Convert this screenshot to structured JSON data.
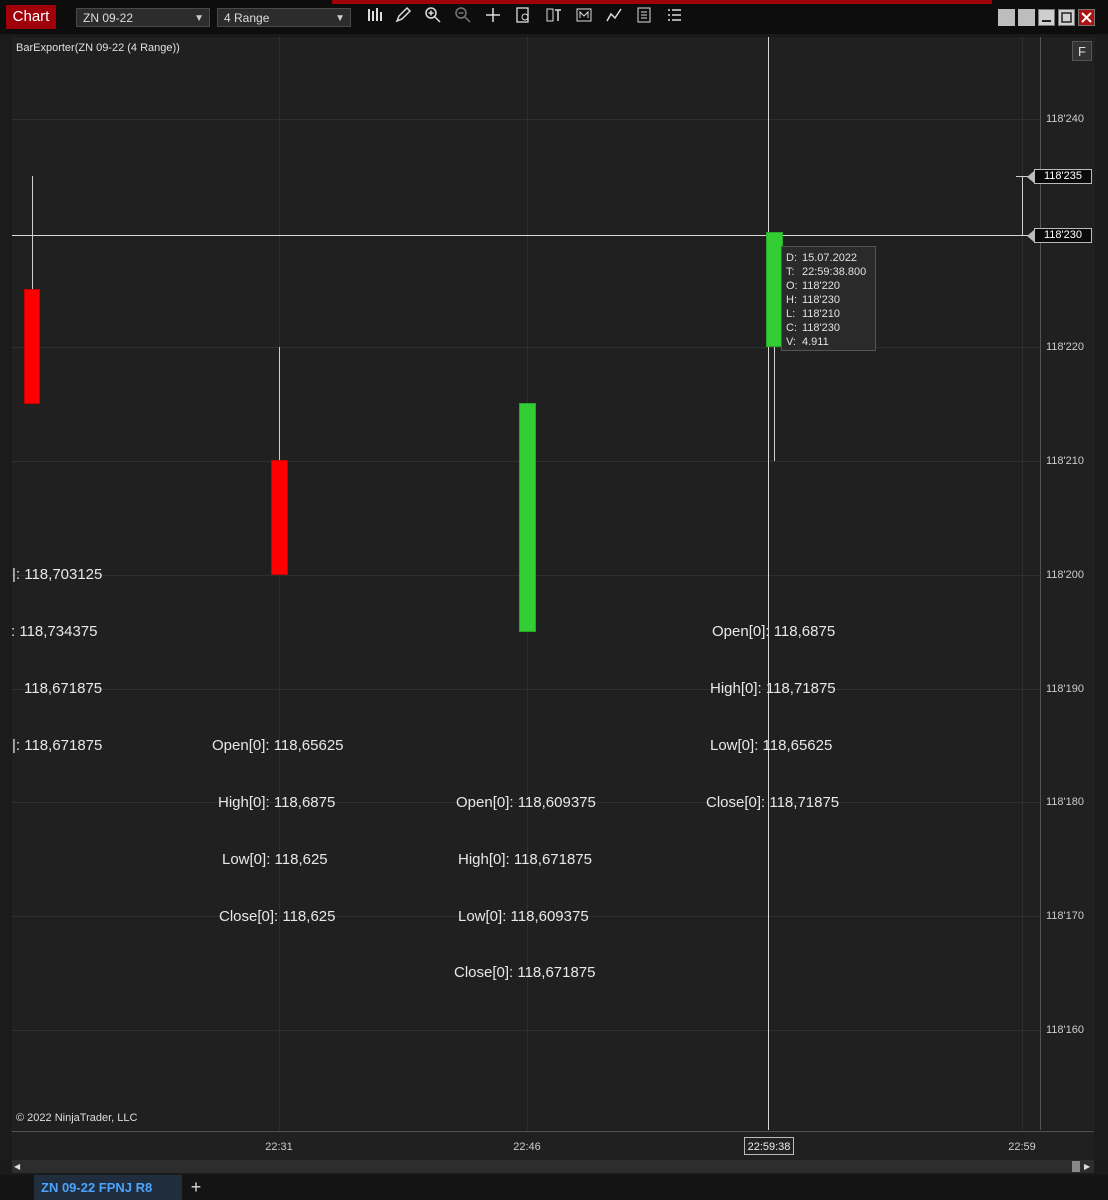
{
  "toolbar": {
    "chart_tab": "Chart",
    "instrument": "ZN 09-22",
    "period": "4 Range",
    "icons": [
      "bar-type-icon",
      "pencil-icon",
      "zoom-in-icon",
      "zoom-out-icon",
      "crosshair-icon",
      "data-box-icon",
      "indicators-icon",
      "strategies-icon",
      "draw-tools-icon",
      "properties-icon",
      "list-icon"
    ]
  },
  "chart": {
    "indicator_label": "BarExporter(ZN 09-22 (4 Range))",
    "copyright": "© 2022 NinjaTrader, LLC",
    "f_button": "F",
    "price_ticks": [
      "118'240",
      "118'220",
      "118'210",
      "118'200",
      "118'190",
      "118'180",
      "118'170",
      "118'160"
    ],
    "price_tag_upper": "118'235",
    "price_tag_crosshair": "118'230",
    "time_ticks": [
      "22:31",
      "22:46",
      "22:59"
    ],
    "time_crosshair": "22:59:38"
  },
  "tooltip": {
    "d_key": "D:",
    "d_val": "15.07.2022",
    "t_key": "T:",
    "t_val": "22:59:38.800",
    "o_key": "O:",
    "o_val": "118'220",
    "h_key": "H:",
    "h_val": "118'230",
    "l_key": "L:",
    "l_val": "118'210",
    "c_key": "C:",
    "c_val": "118'230",
    "v_key": "V:",
    "v_val": "4.911"
  },
  "bar_labels": {
    "bar1": {
      "open": "|:  118,703125",
      "high": ":  118,734375",
      "low": "118,671875",
      "close": "|:  118,671875"
    },
    "bar2": {
      "open": "Open[0]:  118,65625",
      "high": "High[0]:  118,6875",
      "low": "Low[0]:   118,625",
      "close": "Close[0]:  118,625"
    },
    "bar3": {
      "open": "Open[0]:  118,609375",
      "high": "High[0]:  118,671875",
      "low": "Low[0]:   118,609375",
      "close": "Close[0]:  118,671875"
    },
    "bar4": {
      "open": "Open[0]:  118,6875",
      "high": "High[0]:   118,71875",
      "low": "Low[0]:    118,65625",
      "close": "Close[0]:  118,71875"
    }
  },
  "colors": {
    "accent": "#a0000a",
    "bull": "#32cd32",
    "bear": "#ff0000"
  },
  "bottom": {
    "tab_label": "ZN 09-22  FPNJ R8",
    "add_tab": "+"
  }
}
